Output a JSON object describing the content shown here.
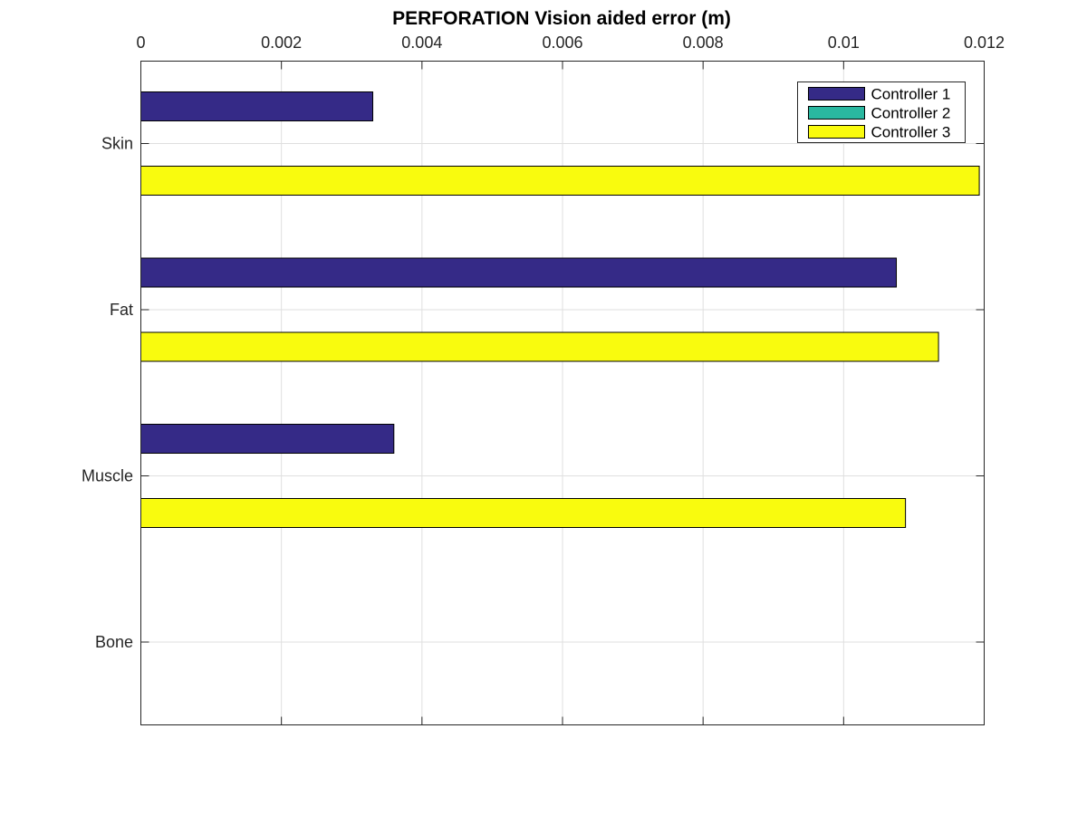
{
  "chart_data": {
    "type": "bar",
    "orientation": "horizontal",
    "title": "PERFORATION Vision aided error (m)",
    "xlabel": "",
    "ylabel": "",
    "categories": [
      "Skin",
      "Fat",
      "Muscle",
      "Bone"
    ],
    "x_axis_location": "top",
    "xlim": [
      0,
      0.012
    ],
    "xticks": [
      0,
      0.002,
      0.004,
      0.006,
      0.008,
      0.01,
      0.012
    ],
    "xtick_labels": [
      "0",
      "0.002",
      "0.004",
      "0.006",
      "0.008",
      "0.01",
      "0.012"
    ],
    "grid": true,
    "legend_position": "top-right",
    "series": [
      {
        "name": "Controller 1",
        "color": "#352a87",
        "values": [
          0.0033,
          0.01075,
          0.0036,
          0
        ]
      },
      {
        "name": "Controller 2",
        "color": "#2ab8a0",
        "values": [
          0,
          0,
          0,
          0
        ]
      },
      {
        "name": "Controller 3",
        "color": "#f9fb0e",
        "values": [
          0.01193,
          0.01135,
          0.01088,
          0
        ]
      }
    ]
  }
}
